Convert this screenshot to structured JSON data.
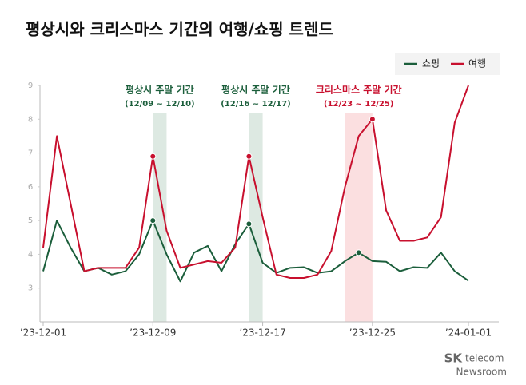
{
  "chart_data": {
    "type": "line",
    "title": "평상시와 크리스마스 기간의 여행/쇼핑 트렌드",
    "x": [
      "2023-12-01",
      "2023-12-02",
      "2023-12-03",
      "2023-12-04",
      "2023-12-05",
      "2023-12-06",
      "2023-12-07",
      "2023-12-08",
      "2023-12-09",
      "2023-12-10",
      "2023-12-11",
      "2023-12-12",
      "2023-12-13",
      "2023-12-14",
      "2023-12-15",
      "2023-12-16",
      "2023-12-17",
      "2023-12-18",
      "2023-12-19",
      "2023-12-20",
      "2023-12-21",
      "2023-12-22",
      "2023-12-23",
      "2023-12-24",
      "2023-12-25",
      "2023-12-26",
      "2023-12-27",
      "2023-12-28",
      "2023-12-29",
      "2023-12-30",
      "2023-12-31",
      "2024-01-01"
    ],
    "xlim": [
      "2023-12-01",
      "2024-01-01"
    ],
    "xticks": [
      {
        "value": "2023-12-01",
        "label": "’23-12-01"
      },
      {
        "value": "2023-12-09",
        "label": "’23-12-09"
      },
      {
        "value": "2023-12-17",
        "label": "’23-12-17"
      },
      {
        "value": "2023-12-25",
        "label": "’23-12-25"
      },
      {
        "value": "2024-01-01",
        "label": "’24-01-01"
      }
    ],
    "ylim": [
      2,
      9
    ],
    "yticks": [
      3,
      4,
      5,
      6,
      7,
      8,
      9
    ],
    "legend": "top-right",
    "series": [
      {
        "name": "쇼핑",
        "color": "#1b5e3b",
        "highlight": [
          8,
          15,
          23
        ],
        "values": [
          3.5,
          5.0,
          4.2,
          3.5,
          3.6,
          3.4,
          3.5,
          4.0,
          5.0,
          4.0,
          3.2,
          4.05,
          4.25,
          3.5,
          4.3,
          4.9,
          3.75,
          3.45,
          3.6,
          3.62,
          3.45,
          3.5,
          3.8,
          4.05,
          3.8,
          3.78,
          3.5,
          3.62,
          3.6,
          4.05,
          3.5,
          3.22
        ]
      },
      {
        "name": "여행",
        "color": "#c8102e",
        "highlight": [
          8,
          15,
          24
        ],
        "values": [
          4.2,
          7.5,
          5.5,
          3.5,
          3.6,
          3.6,
          3.6,
          4.2,
          6.9,
          4.7,
          3.6,
          3.7,
          3.8,
          3.75,
          4.2,
          6.9,
          5.1,
          3.4,
          3.3,
          3.3,
          3.4,
          4.1,
          6.0,
          7.5,
          8.0,
          5.3,
          4.4,
          4.4,
          4.5,
          5.1,
          7.9,
          9.0
        ]
      }
    ],
    "annotations": [
      {
        "start": "2023-12-09",
        "end": "2023-12-10",
        "label": "평상시 주말 기간",
        "sublabel": "(12/09 ~ 12/10)",
        "color": "#1b5e3b",
        "fill": "#dde9e2"
      },
      {
        "start": "2023-12-16",
        "end": "2023-12-17",
        "label": "평상시 주말 기간",
        "sublabel": "(12/16 ~ 12/17)",
        "color": "#1b5e3b",
        "fill": "#dde9e2"
      },
      {
        "start": "2023-12-23",
        "end": "2023-12-25",
        "label": "크리스마스 주말 기간",
        "sublabel": "(12/23 ~ 12/25)",
        "color": "#c8102e",
        "fill": "#fbdfe0"
      }
    ]
  },
  "footer": {
    "brand": "SK",
    "brand_sub": "telecom",
    "name": "Newsroom"
  }
}
